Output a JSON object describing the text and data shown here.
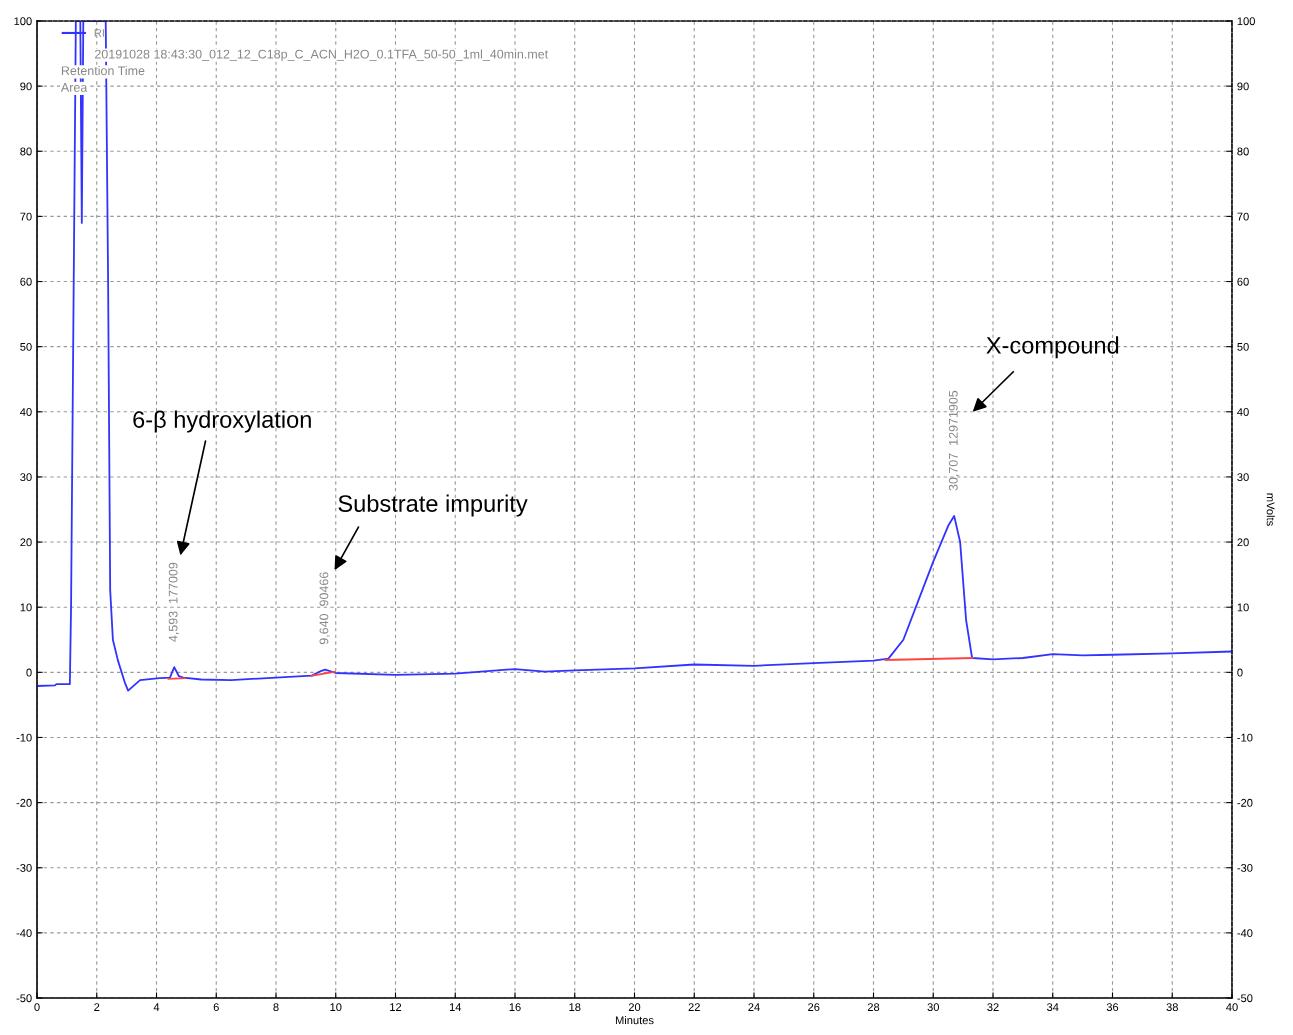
{
  "chart_data": {
    "type": "line",
    "xlabel": "Minutes",
    "y2label": "mVolts",
    "xlim": [
      0,
      40
    ],
    "xticks": [
      0,
      2,
      4,
      6,
      8,
      10,
      12,
      14,
      16,
      18,
      20,
      22,
      24,
      26,
      28,
      30,
      32,
      34,
      36,
      38,
      40
    ],
    "ylim": [
      -50,
      100
    ],
    "yticks": [
      -50,
      -40,
      -30,
      -20,
      -10,
      0,
      10,
      20,
      30,
      40,
      50,
      60,
      70,
      80,
      90,
      100
    ],
    "y2lim": [
      -50,
      100
    ],
    "y2ticks": [
      -50,
      -40,
      -30,
      -20,
      -10,
      0,
      10,
      20,
      30,
      40,
      50,
      60,
      70,
      80,
      90,
      100
    ],
    "grid": true,
    "legend": "top left",
    "line_style": "solid",
    "marker": "none",
    "series": [
      {
        "name": "RI",
        "color": "#3333ff",
        "x": [
          0,
          0.6,
          0.65,
          1.1,
          1.14,
          1.3,
          1.45,
          1.5,
          1.55,
          1.65,
          2.3,
          2.38,
          2.45,
          2.54,
          2.71,
          2.95,
          3.05,
          3.45,
          4.1,
          4.45,
          4.593,
          4.75,
          4.9,
          5.5,
          6.5,
          8,
          9.2,
          9.5,
          9.64,
          10,
          12,
          14,
          16,
          17,
          18,
          20,
          22,
          24,
          26,
          28,
          28.5,
          29,
          29.5,
          30,
          30.5,
          30.7,
          30.9,
          31.1,
          31.3,
          32,
          33,
          34,
          35,
          36,
          38,
          40
        ],
        "values": [
          -2.1,
          -2.0,
          -1.8,
          -1.8,
          10,
          100,
          100,
          69,
          100,
          100,
          100,
          60,
          12.6,
          5,
          1.8,
          -1.7,
          -2.8,
          -1.2,
          -0.9,
          -0.8,
          0.8,
          -0.6,
          -0.8,
          -1.1,
          -1.2,
          -0.8,
          -0.5,
          0.2,
          0.4,
          -0.1,
          -0.4,
          -0.2,
          0.5,
          0.1,
          0.3,
          0.6,
          1.2,
          1.0,
          1.4,
          1.8,
          2.1,
          5,
          11,
          17,
          22.5,
          24,
          20,
          8,
          2.2,
          2.0,
          2.2,
          2.8,
          2.6,
          2.7,
          2.9,
          3.2
        ]
      },
      {
        "color": "#ff4444",
        "x": [
          4.4,
          4.95
        ],
        "values": [
          -1.0,
          -0.9
        ]
      },
      {
        "color": "#ff4444",
        "x": [
          9.2,
          9.97
        ],
        "values": [
          -0.5,
          0.1
        ]
      },
      {
        "color": "#ff4444",
        "x": [
          28.4,
          31.3
        ],
        "values": [
          1.9,
          2.2
        ]
      }
    ],
    "annotations": [
      "6-β hydroxylation",
      "Substrate impurity",
      "X-compound",
      {
        "text": "4,593  177009",
        "x": 4.593,
        "y": 0.8
      },
      {
        "text": "9,640  90466",
        "x": 9.64,
        "y": 0.4
      },
      {
        "text": "30,707  12971905",
        "x": 30.707,
        "y": 24
      },
      "20191028 18:43:30_012_12_C18p_C_ACN_H2O_0.1TFA_50-50_1ml_40min.met",
      "Retention Time",
      "Area"
    ]
  }
}
